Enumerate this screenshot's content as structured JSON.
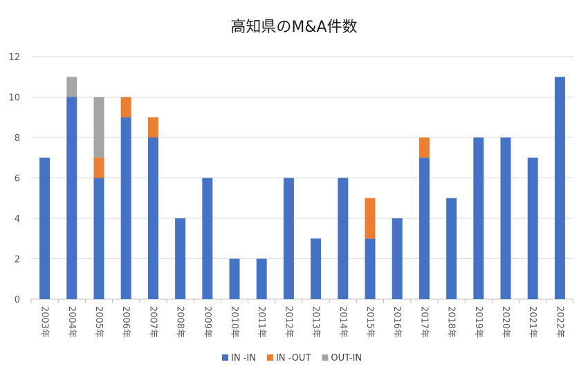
{
  "chart_data": {
    "type": "bar",
    "stacked": true,
    "title": "高知県のM&A件数",
    "xlabel": "",
    "ylabel": "",
    "ylim": [
      0,
      12
    ],
    "yticks": [
      0,
      2,
      4,
      6,
      8,
      10,
      12
    ],
    "grid": true,
    "legend_position": "bottom",
    "categories": [
      "2003年",
      "2004年",
      "2005年",
      "2006年",
      "2007年",
      "2008年",
      "2009年",
      "2010年",
      "2011年",
      "2012年",
      "2013年",
      "2014年",
      "2015年",
      "2016年",
      "2017年",
      "2018年",
      "2019年",
      "2020年",
      "2021年",
      "2022年"
    ],
    "series": [
      {
        "name": "IN -IN",
        "color": "#4472C4",
        "values": [
          7,
          10,
          6,
          9,
          8,
          4,
          6,
          2,
          2,
          6,
          3,
          6,
          3,
          4,
          7,
          5,
          8,
          8,
          7,
          11
        ]
      },
      {
        "name": "IN -OUT",
        "color": "#ED7D31",
        "values": [
          0,
          0,
          1,
          1,
          1,
          0,
          0,
          0,
          0,
          0,
          0,
          0,
          2,
          0,
          1,
          0,
          0,
          0,
          0,
          0
        ]
      },
      {
        "name": "OUT-IN",
        "color": "#A5A5A5",
        "values": [
          0,
          1,
          3,
          0,
          0,
          0,
          0,
          0,
          0,
          0,
          0,
          0,
          0,
          0,
          0,
          0,
          0,
          0,
          0,
          0
        ]
      }
    ]
  }
}
